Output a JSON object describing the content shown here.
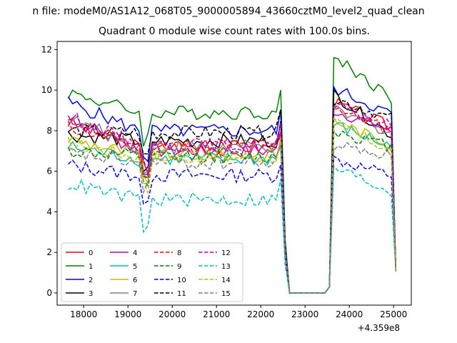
{
  "figure": {
    "suptitle": "n file: modeM0/AS1A12_068T05_9000005894_43660cztM0_level2_quad_clean",
    "title": "Quadrant 0 module wise count rates with 100.0s bins.",
    "x_offset_text": "+4.359e8"
  },
  "chart_data": {
    "type": "line",
    "title": "Quadrant 0 module wise count rates with 100.0s bins.",
    "xlabel": "",
    "ylabel": "",
    "x_offset": 435900000,
    "xlim": [
      17400,
      25400
    ],
    "ylim": [
      -0.6,
      12.4
    ],
    "xticks": [
      18000,
      19000,
      20000,
      21000,
      22000,
      23000,
      24000,
      25000
    ],
    "yticks": [
      0,
      2,
      4,
      6,
      8,
      10,
      12
    ],
    "xtick_labels": [
      "18000",
      "19000",
      "20000",
      "21000",
      "22000",
      "23000",
      "24000",
      "25000"
    ],
    "ytick_labels": [
      "0",
      "2",
      "4",
      "6",
      "8",
      "10",
      "12"
    ],
    "grid": false,
    "legend_position": "lower-left",
    "x_start": 17650,
    "x_step": 100,
    "n_points": 75,
    "series": [
      {
        "name": "0",
        "color": "#ff0000",
        "style": "solid",
        "levels": [
          8.4,
          7.2,
          0,
          0,
          9.4,
          8.2
        ]
      },
      {
        "name": "1",
        "color": "#008000",
        "style": "solid",
        "levels": [
          9.9,
          8.9,
          0,
          0,
          11.7,
          9.6
        ]
      },
      {
        "name": "2",
        "color": "#0000ff",
        "style": "solid",
        "levels": [
          9.4,
          8.0,
          0,
          0,
          10.1,
          8.8
        ]
      },
      {
        "name": "3",
        "color": "#000000",
        "style": "solid",
        "levels": [
          7.8,
          7.5,
          0,
          0,
          9.8,
          7.8
        ]
      },
      {
        "name": "4",
        "color": "#bf00bf",
        "style": "solid",
        "levels": [
          8.7,
          7.0,
          0,
          0,
          9.0,
          8.0
        ]
      },
      {
        "name": "5",
        "color": "#00bfbf",
        "style": "solid",
        "levels": [
          7.2,
          6.6,
          0,
          0,
          8.3,
          7.2
        ]
      },
      {
        "name": "6",
        "color": "#bfbf00",
        "style": "solid",
        "levels": [
          7.6,
          6.8,
          0,
          0,
          8.5,
          7.3
        ]
      },
      {
        "name": "7",
        "color": "#808080",
        "style": "solid",
        "levels": [
          8.6,
          7.2,
          0,
          0,
          9.0,
          7.9
        ]
      },
      {
        "name": "8",
        "color": "#ff0000",
        "style": "dashed",
        "levels": [
          8.2,
          7.3,
          0,
          0,
          9.2,
          8.0
        ]
      },
      {
        "name": "9",
        "color": "#008000",
        "style": "dashed",
        "levels": [
          7.0,
          6.7,
          0,
          0,
          8.0,
          7.2
        ]
      },
      {
        "name": "10",
        "color": "#0000ff",
        "style": "dashed",
        "levels": [
          6.3,
          5.8,
          0,
          0,
          6.6,
          5.8
        ]
      },
      {
        "name": "11",
        "color": "#000000",
        "style": "dashed",
        "levels": [
          8.0,
          7.9,
          0,
          0,
          9.6,
          8.6
        ]
      },
      {
        "name": "12",
        "color": "#bf00bf",
        "style": "dashed",
        "levels": [
          8.7,
          7.3,
          0,
          0,
          9.2,
          8.2
        ]
      },
      {
        "name": "13",
        "color": "#00bfbf",
        "style": "dashed",
        "levels": [
          5.4,
          4.6,
          0,
          0,
          6.2,
          5.0
        ]
      },
      {
        "name": "14",
        "color": "#bfbf00",
        "style": "dashed",
        "levels": [
          7.4,
          6.7,
          0,
          0,
          8.4,
          7.0
        ]
      },
      {
        "name": "15",
        "color": "#808080",
        "style": "dashed",
        "levels": [
          6.9,
          6.4,
          0,
          0,
          7.3,
          6.8
        ]
      }
    ]
  }
}
